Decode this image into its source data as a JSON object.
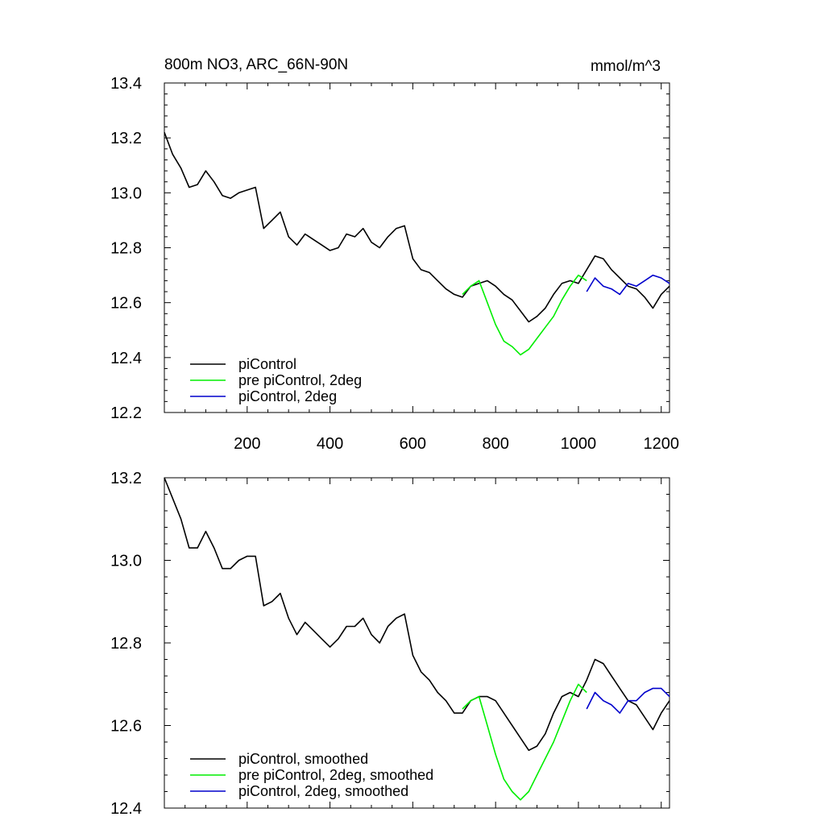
{
  "chart_data": [
    {
      "type": "line",
      "title": "800m NO3, ARC_66N-90N",
      "units": "mmol/m^3",
      "xlim": [
        0,
        1220
      ],
      "ylim": [
        12.2,
        13.4
      ],
      "xticks": [
        200,
        400,
        600,
        800,
        1000,
        1200
      ],
      "xtick_labels": [
        "200",
        "400",
        "600",
        "800",
        "1000",
        "1200"
      ],
      "yticks": [
        12.2,
        12.4,
        12.6,
        12.8,
        13.0,
        13.2,
        13.4
      ],
      "ytick_labels": [
        "12.2",
        "12.4",
        "12.6",
        "12.8",
        "13.0",
        "13.2",
        "13.4"
      ],
      "grid": false,
      "legend_position": "bottom-left",
      "series": [
        {
          "name": "piControl",
          "color": "#000000",
          "x": [
            0,
            20,
            40,
            60,
            80,
            100,
            120,
            140,
            160,
            180,
            200,
            220,
            240,
            260,
            280,
            300,
            320,
            340,
            360,
            380,
            400,
            420,
            440,
            460,
            480,
            500,
            520,
            540,
            560,
            580,
            600,
            620,
            640,
            660,
            680,
            700,
            720,
            740,
            760,
            780,
            800,
            820,
            840,
            860,
            880,
            900,
            920,
            940,
            960,
            980,
            1000,
            1020,
            1040,
            1060,
            1080,
            1100,
            1120,
            1140,
            1160,
            1180,
            1200,
            1220
          ],
          "y": [
            13.22,
            13.14,
            13.09,
            13.02,
            13.03,
            13.08,
            13.04,
            12.99,
            12.98,
            13.0,
            13.01,
            13.02,
            12.87,
            12.9,
            12.93,
            12.84,
            12.81,
            12.85,
            12.83,
            12.81,
            12.79,
            12.8,
            12.85,
            12.84,
            12.87,
            12.82,
            12.8,
            12.84,
            12.87,
            12.88,
            12.76,
            12.72,
            12.71,
            12.68,
            12.65,
            12.63,
            12.62,
            12.66,
            12.67,
            12.68,
            12.66,
            12.63,
            12.61,
            12.57,
            12.53,
            12.55,
            12.58,
            12.63,
            12.67,
            12.68,
            12.67,
            12.72,
            12.77,
            12.76,
            12.72,
            12.69,
            12.66,
            12.65,
            12.62,
            12.58,
            12.63,
            12.66
          ]
        },
        {
          "name": "pre piControl, 2deg",
          "color": "#00ee00",
          "x": [
            720,
            740,
            760,
            780,
            800,
            820,
            840,
            860,
            880,
            900,
            920,
            940,
            960,
            980,
            1000,
            1020
          ],
          "y": [
            12.63,
            12.66,
            12.68,
            12.6,
            12.52,
            12.46,
            12.44,
            12.41,
            12.43,
            12.47,
            12.51,
            12.55,
            12.61,
            12.66,
            12.7,
            12.68
          ]
        },
        {
          "name": "piControl, 2deg",
          "color": "#0000cc",
          "x": [
            1020,
            1040,
            1060,
            1080,
            1100,
            1120,
            1140,
            1160,
            1180,
            1200,
            1220
          ],
          "y": [
            12.64,
            12.69,
            12.66,
            12.65,
            12.63,
            12.67,
            12.66,
            12.68,
            12.7,
            12.69,
            12.67
          ]
        }
      ]
    },
    {
      "type": "line",
      "xlim": [
        0,
        1220
      ],
      "ylim": [
        12.4,
        13.2
      ],
      "yticks": [
        12.4,
        12.6,
        12.8,
        13.0,
        13.2
      ],
      "ytick_labels": [
        "12.4",
        "12.6",
        "12.8",
        "13.0",
        "13.2"
      ],
      "grid": false,
      "legend_position": "bottom-left",
      "series": [
        {
          "name": "piControl, smoothed",
          "color": "#000000",
          "x": [
            0,
            20,
            40,
            60,
            80,
            100,
            120,
            140,
            160,
            180,
            200,
            220,
            240,
            260,
            280,
            300,
            320,
            340,
            360,
            380,
            400,
            420,
            440,
            460,
            480,
            500,
            520,
            540,
            560,
            580,
            600,
            620,
            640,
            660,
            680,
            700,
            720,
            740,
            760,
            780,
            800,
            820,
            840,
            860,
            880,
            900,
            920,
            940,
            960,
            980,
            1000,
            1020,
            1040,
            1060,
            1080,
            1100,
            1120,
            1140,
            1160,
            1180,
            1200,
            1220
          ],
          "y": [
            13.2,
            13.15,
            13.1,
            13.03,
            13.03,
            13.07,
            13.03,
            12.98,
            12.98,
            13.0,
            13.01,
            13.01,
            12.89,
            12.9,
            12.92,
            12.86,
            12.82,
            12.85,
            12.83,
            12.81,
            12.79,
            12.81,
            12.84,
            12.84,
            12.86,
            12.82,
            12.8,
            12.84,
            12.86,
            12.87,
            12.77,
            12.73,
            12.71,
            12.68,
            12.66,
            12.63,
            12.63,
            12.66,
            12.67,
            12.67,
            12.66,
            12.63,
            12.6,
            12.57,
            12.54,
            12.55,
            12.58,
            12.63,
            12.67,
            12.68,
            12.67,
            12.71,
            12.76,
            12.75,
            12.72,
            12.69,
            12.66,
            12.65,
            12.62,
            12.59,
            12.63,
            12.66
          ]
        },
        {
          "name": "pre piControl, 2deg, smoothed",
          "color": "#00ee00",
          "x": [
            720,
            740,
            760,
            780,
            800,
            820,
            840,
            860,
            880,
            900,
            920,
            940,
            960,
            980,
            1000,
            1020
          ],
          "y": [
            12.64,
            12.66,
            12.67,
            12.6,
            12.53,
            12.47,
            12.44,
            12.42,
            12.44,
            12.48,
            12.52,
            12.56,
            12.61,
            12.66,
            12.7,
            12.68
          ]
        },
        {
          "name": "piControl, 2deg, smoothed",
          "color": "#0000cc",
          "x": [
            1020,
            1040,
            1060,
            1080,
            1100,
            1120,
            1140,
            1160,
            1180,
            1200,
            1220
          ],
          "y": [
            12.64,
            12.68,
            12.66,
            12.65,
            12.63,
            12.66,
            12.66,
            12.68,
            12.69,
            12.69,
            12.67
          ]
        }
      ]
    }
  ]
}
